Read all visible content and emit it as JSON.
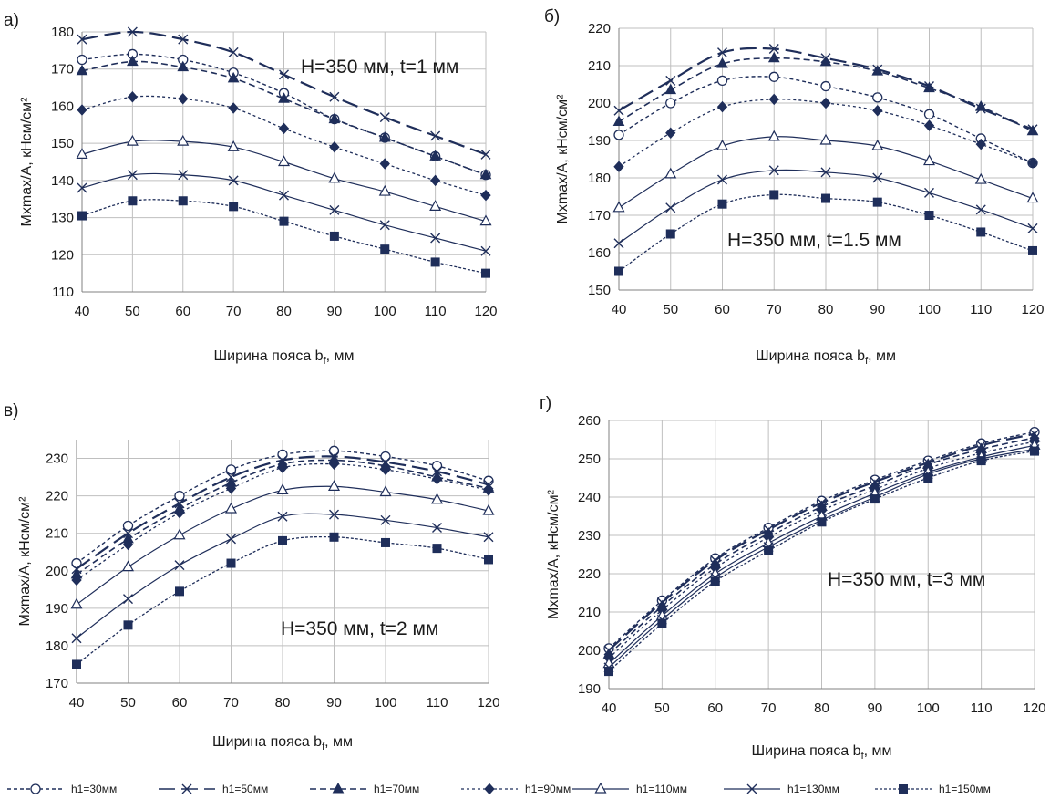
{
  "chart_data": [
    {
      "type": "line",
      "panel_label": "а)",
      "annotation": "H=350 мм, t=1 мм",
      "xlabel": "Ширина пояса b",
      "xlabel_sub": "f",
      "xlabel_tail": ", мм",
      "ylabel": "Mxmax/A,  кНсм/см²",
      "ylim": [
        110,
        180
      ],
      "yticks": [
        110,
        120,
        130,
        140,
        150,
        160,
        170,
        180
      ],
      "x": [
        40,
        50,
        60,
        70,
        80,
        90,
        100,
        110,
        120
      ],
      "grid": true,
      "series": [
        {
          "name": "h1=30мм",
          "values": [
            172.5,
            174,
            172.5,
            169,
            163.5,
            156.5,
            151.5,
            146.5,
            141.5
          ]
        },
        {
          "name": "h1=50мм",
          "values": [
            178,
            180,
            178,
            174.5,
            168.5,
            162.5,
            157,
            152,
            147
          ]
        },
        {
          "name": "h1=70мм",
          "values": [
            169.5,
            172,
            170.5,
            167.5,
            162,
            156.5,
            151.5,
            146.5,
            141.5
          ]
        },
        {
          "name": "h1=90мм",
          "values": [
            159,
            162.5,
            162,
            159.5,
            154,
            149,
            144.5,
            140,
            136
          ]
        },
        {
          "name": "h1=110мм",
          "values": [
            147,
            150.5,
            150.5,
            149,
            145,
            140.5,
            137,
            133,
            129
          ]
        },
        {
          "name": "h1=130мм",
          "values": [
            138,
            141.5,
            141.5,
            140,
            136,
            132,
            128,
            124.5,
            121
          ]
        },
        {
          "name": "h1=150мм",
          "values": [
            130.5,
            134.5,
            134.5,
            133,
            129,
            125,
            121.5,
            118,
            115
          ]
        }
      ]
    },
    {
      "type": "line",
      "panel_label": "б)",
      "annotation": "H=350 мм, t=1.5 мм",
      "xlabel": "Ширина пояса b",
      "xlabel_sub": "f",
      "xlabel_tail": ", мм",
      "ylabel": "Mxmax/A,  кНсм/см²",
      "ylim": [
        150,
        220
      ],
      "yticks": [
        150,
        160,
        170,
        180,
        190,
        200,
        210,
        220
      ],
      "x": [
        40,
        50,
        60,
        70,
        80,
        90,
        100,
        110,
        120
      ],
      "grid": true,
      "series": [
        {
          "name": "h1=30мм",
          "values": [
            191.5,
            200,
            206,
            207,
            204.5,
            201.5,
            197,
            190.5,
            184
          ]
        },
        {
          "name": "h1=50мм",
          "values": [
            198,
            206,
            213.5,
            214.5,
            212,
            209,
            204.5,
            198.5,
            193
          ]
        },
        {
          "name": "h1=70мм",
          "values": [
            195,
            203.5,
            210.5,
            212,
            211,
            208.5,
            204,
            199,
            192.5
          ]
        },
        {
          "name": "h1=90мм",
          "values": [
            183,
            192,
            199,
            201,
            200,
            198,
            194,
            189,
            184
          ]
        },
        {
          "name": "h1=110мм",
          "values": [
            172,
            181,
            188.5,
            191,
            190,
            188.5,
            184.5,
            179.5,
            174.5
          ]
        },
        {
          "name": "h1=130мм",
          "values": [
            162.5,
            172,
            179.5,
            182,
            181.5,
            180,
            176,
            171.5,
            166.5
          ]
        },
        {
          "name": "h1=150мм",
          "values": [
            155,
            165,
            173,
            175.5,
            174.5,
            173.5,
            170,
            165.5,
            160.5
          ]
        }
      ]
    },
    {
      "type": "line",
      "panel_label": "в)",
      "annotation": "H=350 мм, t=2 мм",
      "xlabel": "Ширина пояса b",
      "xlabel_sub": "f",
      "xlabel_tail": ", мм",
      "ylabel": "Mxmax/A,  кНсм/см²",
      "ylim": [
        170,
        235
      ],
      "yticks": [
        170,
        180,
        190,
        200,
        210,
        220,
        230
      ],
      "x": [
        40,
        50,
        60,
        70,
        80,
        90,
        100,
        110,
        120
      ],
      "grid": true,
      "series": [
        {
          "name": "h1=30мм",
          "values": [
            202,
            212,
            220,
            227,
            231,
            232,
            230.5,
            228,
            224
          ]
        },
        {
          "name": "h1=50мм",
          "values": [
            200.5,
            210,
            218,
            225,
            229.5,
            230.5,
            229,
            226.5,
            223
          ]
        },
        {
          "name": "h1=70мм",
          "values": [
            199,
            208.5,
            216.5,
            223.5,
            228.5,
            229.5,
            228,
            225,
            222
          ]
        },
        {
          "name": "h1=90мм",
          "values": [
            197.5,
            207,
            215.5,
            222,
            227.5,
            228.5,
            227,
            224.5,
            221.5
          ]
        },
        {
          "name": "h1=110мм",
          "values": [
            191,
            201,
            209.5,
            216.5,
            221.5,
            222.5,
            221,
            219,
            216
          ]
        },
        {
          "name": "h1=130мм",
          "values": [
            182,
            192.5,
            201.5,
            208.5,
            214.5,
            215,
            213.5,
            211.5,
            209
          ]
        },
        {
          "name": "h1=150мм",
          "values": [
            175,
            185.5,
            194.5,
            202,
            208,
            209,
            207.5,
            206,
            203
          ]
        }
      ]
    },
    {
      "type": "line",
      "panel_label": "г)",
      "annotation": "H=350 мм, t=3 мм",
      "xlabel": "Ширина пояса b",
      "xlabel_sub": "f",
      "xlabel_tail": ", мм",
      "ylabel": "Mxmax/A,  кНсм/см²",
      "ylim": [
        190,
        260
      ],
      "yticks": [
        190,
        200,
        210,
        220,
        230,
        240,
        250,
        260
      ],
      "x": [
        40,
        50,
        60,
        70,
        80,
        90,
        100,
        110,
        120
      ],
      "grid": true,
      "series": [
        {
          "name": "h1=30мм",
          "values": [
            200.5,
            213,
            224,
            232,
            239,
            244.5,
            249.5,
            254,
            257
          ]
        },
        {
          "name": "h1=50мм",
          "values": [
            200,
            212.5,
            223.5,
            231.5,
            238.5,
            244,
            249,
            253.5,
            256.5
          ]
        },
        {
          "name": "h1=70мм",
          "values": [
            199,
            211.5,
            222.5,
            230.5,
            237.5,
            243,
            248.5,
            252.5,
            255.5
          ]
        },
        {
          "name": "h1=90мм",
          "values": [
            198,
            210.5,
            221.5,
            229.5,
            236.5,
            242,
            247.5,
            251.5,
            254.5
          ]
        },
        {
          "name": "h1=110мм",
          "values": [
            196.5,
            209,
            220,
            228,
            235,
            241,
            246.5,
            250.5,
            253.5
          ]
        },
        {
          "name": "h1=130мм",
          "values": [
            195.5,
            208,
            219,
            227,
            234,
            240,
            246,
            250,
            252.5
          ]
        },
        {
          "name": "h1=150мм",
          "values": [
            194.5,
            207,
            218,
            226,
            233.5,
            239.5,
            245,
            249.5,
            252
          ]
        }
      ]
    }
  ],
  "legend": [
    {
      "label": "h1=30мм"
    },
    {
      "label": "h1=50мм"
    },
    {
      "label": "h1=70мм"
    },
    {
      "label": "h1=90мм"
    },
    {
      "label": "h1=110мм"
    },
    {
      "label": "h1=130мм"
    },
    {
      "label": "h1=150мм"
    }
  ],
  "style": {
    "line_color": "#1f2e5a",
    "grid_color": "#bfbfbf",
    "series_styles": [
      {
        "dash": "4 3",
        "marker": "open-circle",
        "width": 1.4
      },
      {
        "dash": "18 7",
        "marker": "x",
        "width": 2.2
      },
      {
        "dash": "7 4",
        "marker": "filled-triangle",
        "width": 1.6
      },
      {
        "dash": "3 3",
        "marker": "filled-diamond",
        "width": 1.3
      },
      {
        "dash": "",
        "marker": "open-triangle",
        "width": 1.2
      },
      {
        "dash": "",
        "marker": "x",
        "width": 1.2
      },
      {
        "dash": "3 2",
        "marker": "filled-square",
        "width": 1.3
      }
    ]
  }
}
